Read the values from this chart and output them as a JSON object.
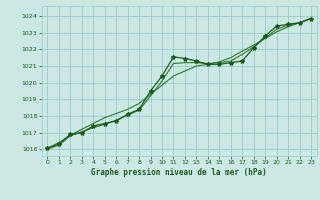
{
  "title": "Graphe pression niveau de la mer (hPa)",
  "bg_color": "#cce8e4",
  "grid_color": "#99cccc",
  "line_color_dark": "#1a5c1a",
  "line_color_mid": "#2d7a2d",
  "line_color_light": "#3a8a3a",
  "xlim": [
    -0.5,
    23.5
  ],
  "ylim": [
    1015.6,
    1024.6
  ],
  "yticks": [
    1016,
    1017,
    1018,
    1019,
    1020,
    1021,
    1022,
    1023,
    1024
  ],
  "xticks": [
    0,
    1,
    2,
    3,
    4,
    5,
    6,
    7,
    8,
    9,
    10,
    11,
    12,
    13,
    14,
    15,
    16,
    17,
    18,
    19,
    20,
    21,
    22,
    23
  ],
  "series_main": [
    1016.1,
    1016.3,
    1016.9,
    1017.0,
    1017.4,
    1017.55,
    1017.7,
    1018.1,
    1018.4,
    1019.5,
    1020.4,
    1021.55,
    1021.45,
    1021.3,
    1021.1,
    1021.1,
    1021.2,
    1021.3,
    1022.1,
    1022.8,
    1023.4,
    1023.5,
    1023.6,
    1023.85
  ],
  "series_smooth": [
    1016.0,
    1016.25,
    1016.8,
    1017.05,
    1017.3,
    1017.5,
    1017.75,
    1018.05,
    1018.35,
    1019.2,
    1020.1,
    1021.15,
    1021.2,
    1021.2,
    1021.15,
    1021.2,
    1021.3,
    1021.7,
    1022.15,
    1022.7,
    1023.2,
    1023.45,
    1023.6,
    1023.85
  ],
  "series_linear": [
    1016.05,
    1016.4,
    1016.85,
    1017.2,
    1017.55,
    1017.9,
    1018.15,
    1018.4,
    1018.75,
    1019.3,
    1019.85,
    1020.4,
    1020.7,
    1021.0,
    1021.1,
    1021.25,
    1021.5,
    1021.9,
    1022.25,
    1022.65,
    1023.05,
    1023.35,
    1023.6,
    1023.85
  ]
}
